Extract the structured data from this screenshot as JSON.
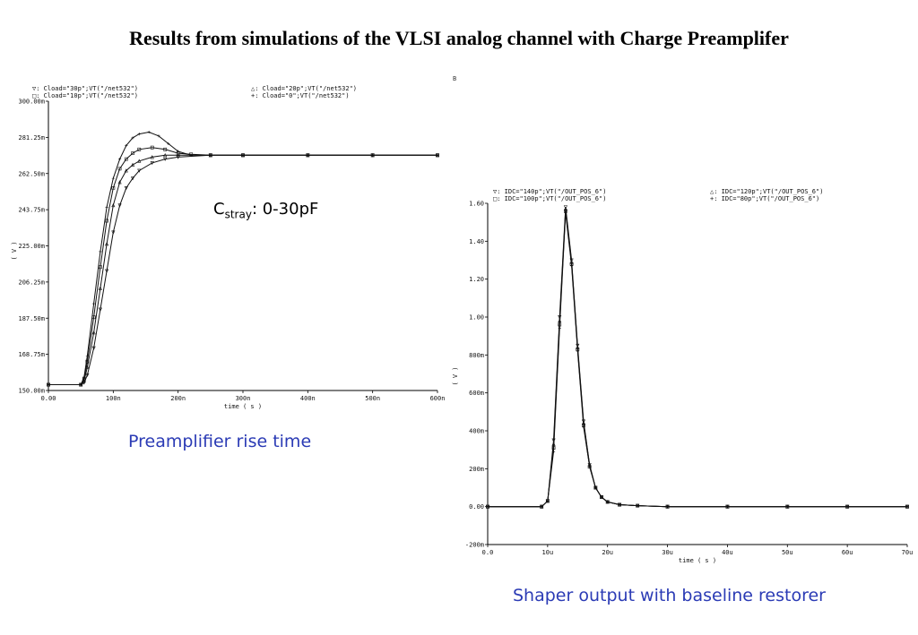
{
  "page": {
    "title": "Results from simulations of the VLSI analog channel with Charge Preamplifer",
    "stray_mark": "B",
    "left_caption": "Preamplifier rise time",
    "right_caption": "Shaper output with baseline restorer",
    "annotation": {
      "base": "C",
      "sub": "stray",
      "rest": ": 0-30pF"
    }
  },
  "chart_data": [
    {
      "type": "line",
      "xlabel": "time ( s )",
      "ylabel": "( V )",
      "xlim": [
        0,
        600
      ],
      "ylim": [
        150,
        300
      ],
      "x_ticks": [
        0,
        100,
        200,
        300,
        400,
        500,
        600
      ],
      "x_tick_labels": [
        "0.00",
        "100n",
        "200n",
        "300n",
        "400n",
        "500n",
        "600n"
      ],
      "y_ticks": [
        150,
        168.75,
        187.5,
        206.25,
        225,
        243.75,
        262.5,
        281.25,
        300
      ],
      "y_tick_labels": [
        "150.00m",
        "168.75m",
        "187.50m",
        "206.25m",
        "225.00m",
        "243.75m",
        "262.50m",
        "281.25m",
        "300.00m"
      ],
      "grid": false,
      "legend_placement": "top",
      "series": [
        {
          "name": "Cload=\"30p\";VT(\"/net532\")",
          "marker": "triangle-down",
          "x": [
            0,
            50,
            55,
            60,
            70,
            80,
            90,
            100,
            110,
            120,
            130,
            140,
            160,
            180,
            200,
            250,
            300,
            400,
            500,
            600
          ],
          "y": [
            153,
            153,
            154,
            158,
            172,
            192,
            212,
            232,
            246,
            255,
            260,
            264,
            268,
            270,
            271,
            272,
            272,
            272,
            272,
            272
          ]
        },
        {
          "name": "Cload=\"20p\";VT(\"/net532\")",
          "marker": "triangle-up",
          "x": [
            0,
            50,
            55,
            60,
            70,
            80,
            90,
            100,
            110,
            120,
            130,
            140,
            160,
            180,
            200,
            250,
            300,
            400,
            500,
            600
          ],
          "y": [
            153,
            153,
            155,
            162,
            180,
            203,
            226,
            246,
            258,
            264,
            267,
            269,
            271,
            272,
            272,
            272,
            272,
            272,
            272,
            272
          ]
        },
        {
          "name": "Cload=\"10p\";VT(\"/net532\")",
          "marker": "square",
          "x": [
            0,
            50,
            55,
            60,
            70,
            80,
            90,
            100,
            110,
            120,
            130,
            140,
            160,
            180,
            200,
            220,
            250,
            300,
            400,
            500,
            600
          ],
          "y": [
            153,
            153,
            156,
            165,
            188,
            214,
            238,
            255,
            265,
            270,
            273,
            275,
            276,
            275,
            273,
            272.5,
            272,
            272,
            272,
            272,
            272
          ]
        },
        {
          "name": "Cload=\"0\";VT(\"/net532\")",
          "marker": "cross",
          "x": [
            0,
            50,
            55,
            60,
            70,
            80,
            90,
            100,
            110,
            120,
            130,
            140,
            155,
            170,
            185,
            200,
            220,
            250,
            300,
            400,
            500,
            600
          ],
          "y": [
            153,
            153,
            157,
            168,
            195,
            222,
            245,
            260,
            270,
            277,
            281,
            283,
            284,
            282,
            278,
            274,
            272,
            272,
            272,
            272,
            272,
            272
          ]
        }
      ]
    },
    {
      "type": "line",
      "xlabel": "time ( s )",
      "ylabel": "( V )",
      "xlim": [
        0,
        70
      ],
      "ylim": [
        -0.2,
        1.6
      ],
      "x_ticks": [
        0,
        10,
        20,
        30,
        40,
        50,
        60,
        70
      ],
      "x_tick_labels": [
        "0.0",
        "10u",
        "20u",
        "30u",
        "40u",
        "50u",
        "60u",
        "70u"
      ],
      "y_ticks": [
        -0.2,
        0,
        0.2,
        0.4,
        0.6,
        0.8,
        1.0,
        1.2,
        1.4,
        1.6
      ],
      "y_tick_labels": [
        "-200m",
        "0.00",
        "200m",
        "400m",
        "600m",
        "800m",
        "1.00",
        "1.20",
        "1.40",
        "1.60"
      ],
      "grid": false,
      "legend_placement": "top",
      "series": [
        {
          "name": "IDC=\"140p\";VT(\"/OUT_POS_6\")",
          "marker": "triangle-down",
          "x": [
            0,
            9,
            10,
            11,
            12,
            13,
            14,
            15,
            16,
            17,
            18,
            19,
            20,
            22,
            25,
            30,
            40,
            50,
            60,
            70
          ],
          "y": [
            0,
            0,
            0.03,
            0.35,
            1.0,
            1.58,
            1.3,
            0.85,
            0.45,
            0.22,
            0.1,
            0.05,
            0.025,
            0.01,
            0.005,
            0,
            0,
            0,
            0,
            0
          ]
        },
        {
          "name": "IDC=\"120p\";VT(\"/OUT_POS_6\")",
          "marker": "triangle-up",
          "x": [
            0,
            9,
            10,
            11,
            12,
            13,
            14,
            15,
            16,
            17,
            18,
            19,
            20,
            22,
            25,
            30,
            40,
            50,
            60,
            70
          ],
          "y": [
            0,
            0,
            0.03,
            0.33,
            0.98,
            1.57,
            1.29,
            0.84,
            0.44,
            0.22,
            0.1,
            0.05,
            0.025,
            0.01,
            0.005,
            0,
            0,
            0,
            0,
            0
          ]
        },
        {
          "name": "IDC=\"100p\";VT(\"/OUT_POS_6\")",
          "marker": "square",
          "x": [
            0,
            9,
            10,
            11,
            12,
            13,
            14,
            15,
            16,
            17,
            18,
            19,
            20,
            22,
            25,
            30,
            40,
            50,
            60,
            70
          ],
          "y": [
            0,
            0,
            0.03,
            0.31,
            0.96,
            1.56,
            1.28,
            0.83,
            0.43,
            0.21,
            0.1,
            0.05,
            0.025,
            0.01,
            0.005,
            0,
            0,
            0,
            0,
            0
          ]
        },
        {
          "name": "IDC=\"80p\";VT(\"/OUT_POS_6\")",
          "marker": "cross",
          "x": [
            0,
            9,
            10,
            11,
            12,
            13,
            14,
            15,
            16,
            17,
            18,
            19,
            20,
            22,
            25,
            30,
            40,
            50,
            60,
            70
          ],
          "y": [
            0,
            0,
            0.03,
            0.29,
            0.94,
            1.55,
            1.27,
            0.82,
            0.42,
            0.21,
            0.1,
            0.05,
            0.025,
            0.01,
            0.005,
            0,
            0,
            0,
            0,
            0
          ]
        }
      ]
    }
  ]
}
